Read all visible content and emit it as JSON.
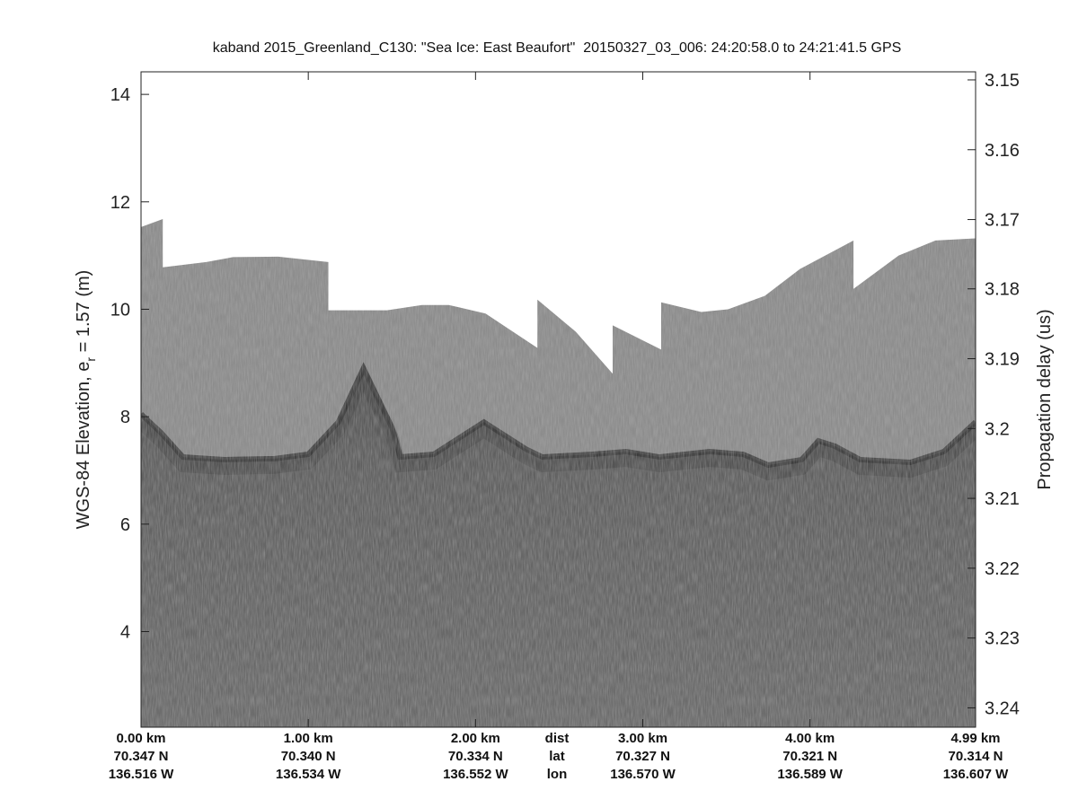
{
  "chart_data": {
    "type": "heatmap",
    "title": "kaband 2015_Greenland_C130: \"Sea Ice: East Beaufort\"  20150327_03_006: 24:20:58.0 to 24:21:41.5 GPS",
    "ylabel_left": "WGS-84 Elevation, e",
    "ylabel_left_sub": "r",
    "ylabel_left_suffix": " = 1.57 (m)",
    "ylabel_right": "Propagation delay (us)",
    "xlim_km": [
      0,
      4.99
    ],
    "ylim": [
      2.22,
      14.42
    ],
    "left_ticks": [
      14,
      12,
      10,
      8,
      6,
      4
    ],
    "right_ticks": [
      {
        "label": "3.15",
        "elev": 14.27
      },
      {
        "label": "3.16",
        "elev": 12.97
      },
      {
        "label": "3.17",
        "elev": 11.67
      },
      {
        "label": "3.18",
        "elev": 10.38
      },
      {
        "label": "3.19",
        "elev": 9.08
      },
      {
        "label": "3.2",
        "elev": 7.78
      },
      {
        "label": "3.21",
        "elev": 6.48
      },
      {
        "label": "3.22",
        "elev": 5.18
      },
      {
        "label": "3.23",
        "elev": 3.88
      },
      {
        "label": "3.24",
        "elev": 2.58
      }
    ],
    "x_ticks": [
      {
        "km": 0,
        "dist": "0.00 km",
        "lat": "70.347 N",
        "lon": "136.516 W"
      },
      {
        "km": 1,
        "dist": "1.00 km",
        "lat": "70.340 N",
        "lon": "136.534 W"
      },
      {
        "km": 2,
        "dist": "2.00 km",
        "lat": "70.334 N",
        "lon": "136.552 W"
      },
      {
        "km": 3,
        "dist": "3.00 km",
        "lat": "70.327 N",
        "lon": "136.570 W"
      },
      {
        "km": 4,
        "dist": "4.00 km",
        "lat": "70.321 N",
        "lon": "136.589 W"
      },
      {
        "km": 4.99,
        "dist": "4.99 km",
        "lat": "70.314 N",
        "lon": "136.607 W"
      }
    ],
    "row_labels": {
      "dist": "dist",
      "lat": "lat",
      "lon": "lon"
    },
    "data_top_elevation": [
      [
        0,
        11.53
      ],
      [
        0.13,
        11.68
      ],
      [
        0.13,
        10.78
      ],
      [
        0.39,
        10.88
      ],
      [
        0.55,
        10.97
      ],
      [
        0.82,
        10.98
      ],
      [
        1.12,
        10.88
      ],
      [
        1.12,
        9.98
      ],
      [
        1.47,
        9.98
      ],
      [
        1.68,
        10.08
      ],
      [
        1.84,
        10.08
      ],
      [
        2.06,
        9.92
      ],
      [
        2.37,
        9.28
      ],
      [
        2.37,
        10.18
      ],
      [
        2.6,
        9.58
      ],
      [
        2.82,
        8.8
      ],
      [
        2.82,
        9.7
      ],
      [
        3.11,
        9.25
      ],
      [
        3.11,
        10.13
      ],
      [
        3.35,
        9.95
      ],
      [
        3.51,
        10.0
      ],
      [
        3.73,
        10.25
      ],
      [
        3.94,
        10.75
      ],
      [
        4.26,
        11.28
      ],
      [
        4.26,
        10.38
      ],
      [
        4.53,
        11.0
      ],
      [
        4.75,
        11.28
      ],
      [
        4.99,
        11.32
      ]
    ],
    "bright_echo_elevation": [
      [
        0,
        8.05
      ],
      [
        0.12,
        7.7
      ],
      [
        0.25,
        7.25
      ],
      [
        0.5,
        7.2
      ],
      [
        0.8,
        7.22
      ],
      [
        1.0,
        7.3
      ],
      [
        1.18,
        7.9
      ],
      [
        1.33,
        8.9
      ],
      [
        1.5,
        7.8
      ],
      [
        1.55,
        7.25
      ],
      [
        1.75,
        7.3
      ],
      [
        2.05,
        7.9
      ],
      [
        2.3,
        7.4
      ],
      [
        2.4,
        7.25
      ],
      [
        2.7,
        7.3
      ],
      [
        2.9,
        7.35
      ],
      [
        3.1,
        7.25
      ],
      [
        3.4,
        7.35
      ],
      [
        3.6,
        7.3
      ],
      [
        3.75,
        7.1
      ],
      [
        3.95,
        7.2
      ],
      [
        4.05,
        7.55
      ],
      [
        4.15,
        7.45
      ],
      [
        4.3,
        7.2
      ],
      [
        4.6,
        7.15
      ],
      [
        4.8,
        7.35
      ],
      [
        4.99,
        7.9
      ]
    ],
    "colormap": "gray",
    "colors": {
      "above_echo": "#8c8c8c",
      "below_echo": "#666666",
      "echo": "#2e2e2e",
      "no_data": "#ffffff"
    }
  }
}
